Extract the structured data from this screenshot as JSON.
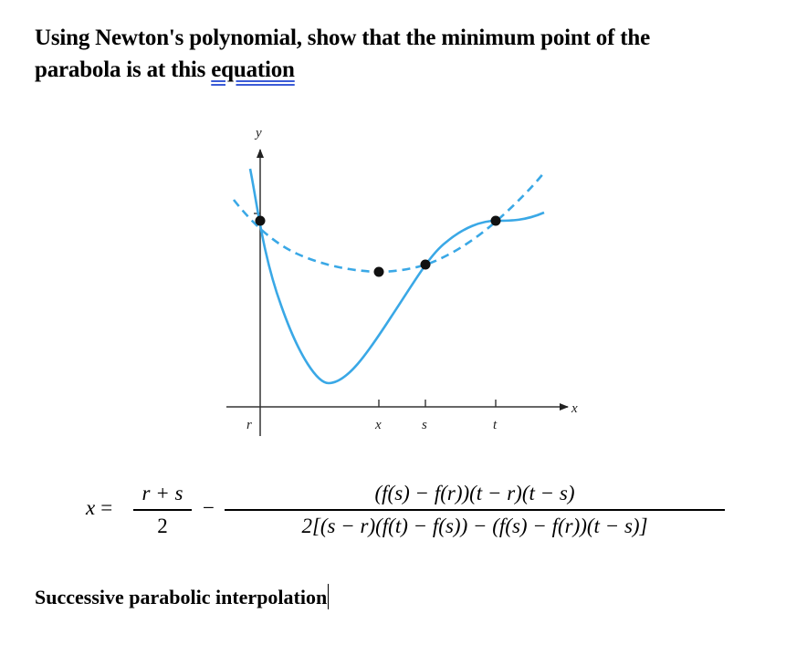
{
  "heading": {
    "line1": "Using Newton's polynomial, show that the minimum point of the",
    "line2_prefix": "parabola is at this ",
    "line2_underlined": "equation"
  },
  "figure": {
    "y_axis_label": "y",
    "x_axis_label": "x",
    "tick_labels": {
      "r": "r",
      "x": "x",
      "s": "s",
      "t": "t"
    },
    "function_curve_color": "#3aa8e6",
    "parabola_color": "#3aa8e6",
    "point_color": "#111111"
  },
  "formula": {
    "lhs": "x",
    "equals": "=",
    "frac1_numerator": "r + s",
    "frac1_denominator": "2",
    "operator": "−",
    "frac2_numerator": "(f(s) − f(r))(t − r)(t − s)",
    "frac2_denominator": "2[(s − r)(f(t) − f(s)) − (f(s) − f(r))(t − s)]"
  },
  "footer": {
    "text": "Successive parabolic interpolation"
  }
}
